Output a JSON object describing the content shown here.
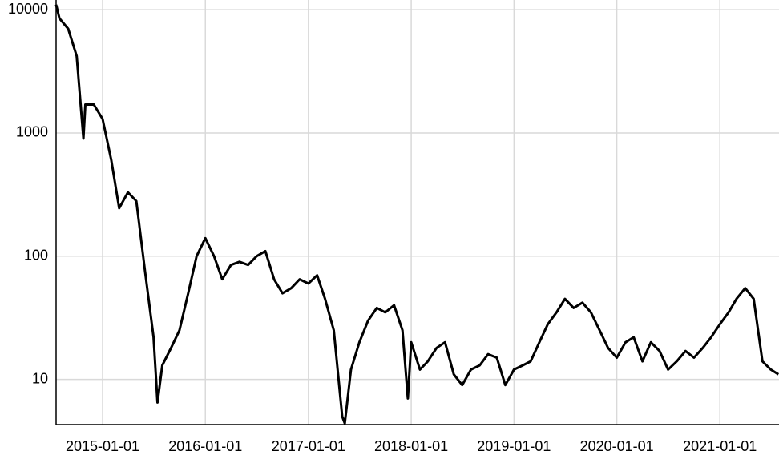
{
  "chart_data": {
    "type": "line",
    "color": "#000000",
    "log_y": true,
    "grid": true,
    "xlim": [
      "2014-07-20",
      "2021-07-30"
    ],
    "xticks": [
      "2015-01-01",
      "2016-01-01",
      "2017-01-01",
      "2018-01-01",
      "2019-01-01",
      "2020-01-01",
      "2021-01-01"
    ],
    "ylim": [
      4.3,
      12000
    ],
    "yticks": [
      10,
      100,
      1000,
      10000
    ],
    "x": [
      "2014-07-20",
      "2014-08-01",
      "2014-09-01",
      "2014-10-01",
      "2014-10-25",
      "2014-11-01",
      "2014-12-01",
      "2015-01-01",
      "2015-02-01",
      "2015-03-01",
      "2015-04-01",
      "2015-05-01",
      "2015-06-01",
      "2015-07-01",
      "2015-07-15",
      "2015-08-01",
      "2015-09-01",
      "2015-10-01",
      "2015-11-01",
      "2015-12-01",
      "2016-01-01",
      "2016-02-01",
      "2016-03-01",
      "2016-04-01",
      "2016-05-01",
      "2016-06-01",
      "2016-07-01",
      "2016-08-01",
      "2016-09-01",
      "2016-10-01",
      "2016-11-01",
      "2016-12-01",
      "2017-01-01",
      "2017-02-01",
      "2017-03-01",
      "2017-04-01",
      "2017-05-01",
      "2017-05-10",
      "2017-06-01",
      "2017-07-01",
      "2017-08-01",
      "2017-09-01",
      "2017-10-01",
      "2017-11-01",
      "2017-12-01",
      "2017-12-20",
      "2018-01-01",
      "2018-02-01",
      "2018-03-01",
      "2018-04-01",
      "2018-05-01",
      "2018-06-01",
      "2018-07-01",
      "2018-08-01",
      "2018-09-01",
      "2018-10-01",
      "2018-11-01",
      "2018-12-01",
      "2019-01-01",
      "2019-02-01",
      "2019-03-01",
      "2019-04-01",
      "2019-05-01",
      "2019-06-01",
      "2019-07-01",
      "2019-08-01",
      "2019-09-01",
      "2019-10-01",
      "2019-11-01",
      "2019-12-01",
      "2020-01-01",
      "2020-02-01",
      "2020-03-01",
      "2020-04-01",
      "2020-05-01",
      "2020-06-01",
      "2020-07-01",
      "2020-08-01",
      "2020-09-01",
      "2020-10-01",
      "2020-11-01",
      "2020-12-01",
      "2021-01-01",
      "2021-02-01",
      "2021-03-01",
      "2021-04-01",
      "2021-05-01",
      "2021-06-01",
      "2021-07-01",
      "2021-07-28"
    ],
    "values": [
      11000,
      8500,
      7000,
      4200,
      900,
      1700,
      1700,
      1300,
      600,
      245,
      330,
      280,
      75,
      22,
      6.5,
      13,
      18,
      25,
      50,
      100,
      140,
      100,
      65,
      85,
      90,
      85,
      100,
      110,
      65,
      50,
      55,
      65,
      60,
      70,
      45,
      25,
      5,
      4.4,
      12,
      20,
      30,
      38,
      35,
      40,
      25,
      7,
      20,
      12,
      14,
      18,
      20,
      11,
      9,
      12,
      13,
      16,
      15,
      9,
      12,
      13,
      14,
      20,
      28,
      35,
      45,
      38,
      42,
      35,
      25,
      18,
      15,
      20,
      22,
      14,
      20,
      17,
      12,
      14,
      17,
      15,
      18,
      22,
      28,
      35,
      45,
      55,
      45,
      14,
      12,
      11
    ]
  }
}
